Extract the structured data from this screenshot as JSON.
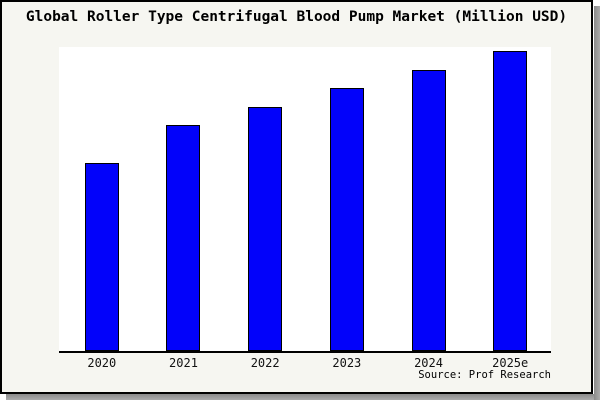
{
  "title": "Global Roller Type Centrifugal Blood Pump Market (Million USD)",
  "source_note": "Source: Prof Research",
  "colors": {
    "bar_fill": "#0202fa",
    "bar_border": "#000000",
    "panel_background": "#f6f6f1",
    "plot_background": "#ffffff",
    "frame_border": "#000000",
    "frame_shadow": "#9a9a9a"
  },
  "chart_data": {
    "type": "bar",
    "title": "Global Roller Type Centrifugal Blood Pump Market (Million USD)",
    "categories": [
      "2020",
      "2021",
      "2022",
      "2023",
      "2024",
      "2025e"
    ],
    "values": [
      62.7,
      75.2,
      81.5,
      87.7,
      93.7,
      100
    ],
    "value_note": "Chart shows no y-axis, gridlines or data labels; values are relative bar heights normalized to 2025e = 100",
    "xlabel": "",
    "ylabel": "",
    "ylim": [
      0,
      102
    ],
    "grid": false,
    "legend": false,
    "annotations": [
      "Source: Prof Research"
    ]
  }
}
